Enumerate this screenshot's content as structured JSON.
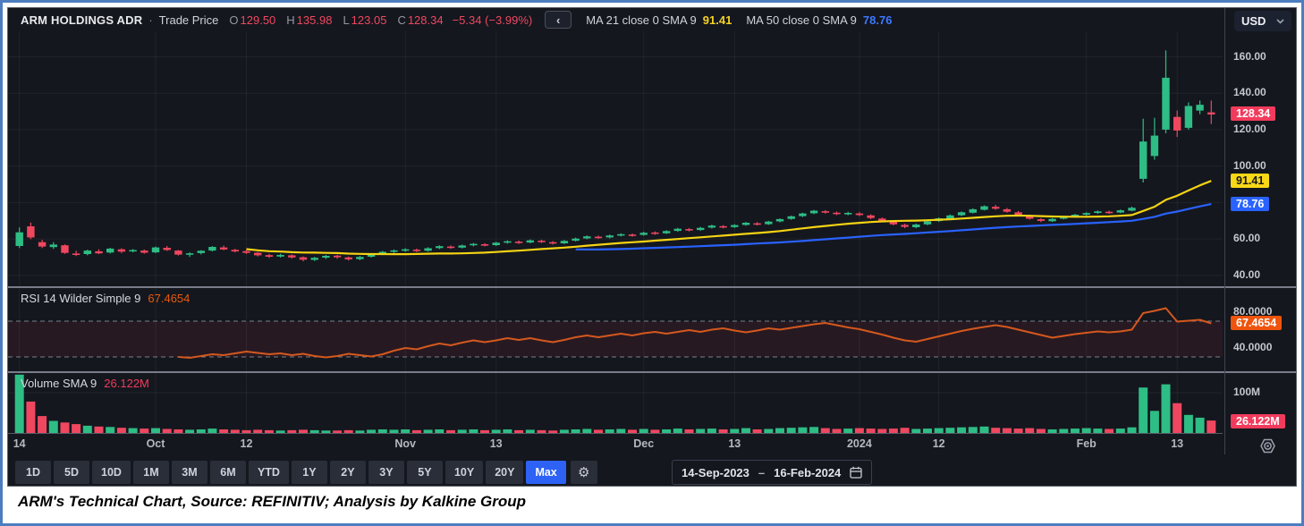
{
  "header": {
    "symbol": "ARM HOLDINGS ADR",
    "separator": "·",
    "series_type": "Trade Price",
    "ohlc": {
      "o_label": "O",
      "o": "129.50",
      "h_label": "H",
      "h": "135.98",
      "l_label": "L",
      "l": "123.05",
      "c_label": "C",
      "c": "128.34"
    },
    "change": "−5.34 (−3.99%)",
    "collapse_icon": "‹",
    "ma21": {
      "label": "MA 21 close 0 SMA 9",
      "value": "91.41"
    },
    "ma50": {
      "label": "MA 50 close 0 SMA 9",
      "value": "78.76"
    },
    "currency": "USD"
  },
  "panes": {
    "rsi": {
      "label": "RSI 14 Wilder Simple 9",
      "value": "67.4654"
    },
    "volume": {
      "label": "Volume SMA 9",
      "value": "26.122M"
    }
  },
  "axis": {
    "price_labels": [
      {
        "text": "160.00",
        "value": 160
      },
      {
        "text": "140.00",
        "value": 140
      },
      {
        "text": "120.00",
        "value": 120
      },
      {
        "text": "100.00",
        "value": 100
      },
      {
        "text": "60.00",
        "value": 60
      },
      {
        "text": "40.00",
        "value": 40
      }
    ],
    "price_badges": [
      {
        "text": "128.34",
        "value": 128.34,
        "bg": "#f23b5c",
        "fg": "#ffffff"
      },
      {
        "text": "91.41",
        "value": 91.41,
        "bg": "#f8d717",
        "fg": "#15171c"
      },
      {
        "text": "78.76",
        "value": 78.76,
        "bg": "#2962ff",
        "fg": "#ffffff"
      }
    ],
    "rsi_labels": [
      {
        "text": "80.0000",
        "value": 80
      },
      {
        "text": "40.0000",
        "value": 40
      }
    ],
    "rsi_badge": {
      "text": "67.4654",
      "value": 67.4654,
      "bg": "#ef540d",
      "fg": "#ffffff"
    },
    "vol_labels": [
      {
        "text": "100M",
        "value": 100
      }
    ],
    "vol_badge": {
      "text": "26.122M",
      "value": 26.122,
      "bg": "#f23b5c",
      "fg": "#ffffff"
    }
  },
  "time_axis": {
    "ticks": [
      {
        "label": "14",
        "bar": 0
      },
      {
        "label": "Oct",
        "bar": 12
      },
      {
        "label": "12",
        "bar": 20
      },
      {
        "label": "Nov",
        "bar": 34
      },
      {
        "label": "13",
        "bar": 42
      },
      {
        "label": "Dec",
        "bar": 55
      },
      {
        "label": "13",
        "bar": 63
      },
      {
        "label": "2024",
        "bar": 74
      },
      {
        "label": "12",
        "bar": 81
      },
      {
        "label": "Feb",
        "bar": 94
      },
      {
        "label": "13",
        "bar": 102
      }
    ]
  },
  "toolbar": {
    "ranges": [
      "1D",
      "5D",
      "10D",
      "1M",
      "3M",
      "6M",
      "YTD",
      "1Y",
      "2Y",
      "3Y",
      "5Y",
      "10Y",
      "20Y",
      "Max"
    ],
    "selected": "Max",
    "date_from": "14-Sep-2023",
    "date_sep": "–",
    "date_to": "16-Feb-2024"
  },
  "caption": "ARM's Technical Chart, Source: REFINITIV; Analysis by Kalkine Group",
  "chart_data": {
    "type": "candlestick",
    "title": "ARM HOLDINGS ADR - Trade Price",
    "date_range": [
      "14-Sep-2023",
      "16-Feb-2024"
    ],
    "price_ylim": [
      34,
      174
    ],
    "rsi_ylim": [
      14,
      107
    ],
    "vol_ylim_M": [
      0,
      149
    ],
    "grid_price": [
      40,
      60,
      80,
      100,
      120,
      140,
      160
    ],
    "colors": {
      "up": "#2ebd85",
      "down": "#ef4760",
      "ma21": "#f5d313",
      "ma50": "#2962ff",
      "rsi_line": "#d4581e",
      "rsi_band": "#b2283a",
      "grid": "rgba(255,255,255,0.055)",
      "dashed": "#9ba0aa"
    },
    "overlays": [
      {
        "name": "MA 21 close 0 SMA 9",
        "type": "sma",
        "period": 21,
        "last": 91.41
      },
      {
        "name": "MA 50 close 0 SMA 9",
        "type": "sma",
        "period": 50,
        "last": 78.76
      }
    ],
    "rsi": {
      "period": 14,
      "method": "Wilder",
      "upper": 70,
      "lower": 30,
      "last": 67.4654
    },
    "candles": [
      [
        56.1,
        66.3,
        55.0,
        63.6
      ],
      [
        66.9,
        69.0,
        59.9,
        60.8
      ],
      [
        58.2,
        59.5,
        55.0,
        55.8
      ],
      [
        55.5,
        58.2,
        54.5,
        56.9
      ],
      [
        56.5,
        57.0,
        51.8,
        52.3
      ],
      [
        52.0,
        53.5,
        50.6,
        51.3
      ],
      [
        51.7,
        54.1,
        51.0,
        53.6
      ],
      [
        53.2,
        54.3,
        51.7,
        52.1
      ],
      [
        52.5,
        55.1,
        52.0,
        54.7
      ],
      [
        54.3,
        54.9,
        52.2,
        53.0
      ],
      [
        53.3,
        54.4,
        52.6,
        53.9
      ],
      [
        53.6,
        54.2,
        51.9,
        52.4
      ],
      [
        52.6,
        55.8,
        52.2,
        55.3
      ],
      [
        55.1,
        56.1,
        53.4,
        53.9
      ],
      [
        53.6,
        53.9,
        50.9,
        51.4
      ],
      [
        51.3,
        52.6,
        50.1,
        52.1
      ],
      [
        52.2,
        53.8,
        51.5,
        53.5
      ],
      [
        53.6,
        56.0,
        53.1,
        55.6
      ],
      [
        55.3,
        56.3,
        53.8,
        54.2
      ],
      [
        54.0,
        54.6,
        52.6,
        53.1
      ],
      [
        53.3,
        53.9,
        51.8,
        52.3
      ],
      [
        52.4,
        52.9,
        50.4,
        51.0
      ],
      [
        51.1,
        51.8,
        49.5,
        50.2
      ],
      [
        50.3,
        51.9,
        49.8,
        51.2
      ],
      [
        51.0,
        51.5,
        49.2,
        49.8
      ],
      [
        49.9,
        50.4,
        47.7,
        48.6
      ],
      [
        48.5,
        50.1,
        47.9,
        49.6
      ],
      [
        49.7,
        51.2,
        49.0,
        50.7
      ],
      [
        50.8,
        51.3,
        49.1,
        49.9
      ],
      [
        49.8,
        50.3,
        48.1,
        48.8
      ],
      [
        48.9,
        50.6,
        48.3,
        50.1
      ],
      [
        50.2,
        52.1,
        49.7,
        51.6
      ],
      [
        51.7,
        53.4,
        51.1,
        52.9
      ],
      [
        53.0,
        54.2,
        52.2,
        53.7
      ],
      [
        53.8,
        54.9,
        52.9,
        54.3
      ],
      [
        54.1,
        54.7,
        52.8,
        53.4
      ],
      [
        53.5,
        55.4,
        53.0,
        54.9
      ],
      [
        55.0,
        56.5,
        54.4,
        56.0
      ],
      [
        55.8,
        56.4,
        54.5,
        55.1
      ],
      [
        55.2,
        56.9,
        54.8,
        56.4
      ],
      [
        56.5,
        57.8,
        55.9,
        57.3
      ],
      [
        57.1,
        57.7,
        55.9,
        56.5
      ],
      [
        56.6,
        58.4,
        56.1,
        57.9
      ],
      [
        58.0,
        59.2,
        57.4,
        58.7
      ],
      [
        58.5,
        59.1,
        57.3,
        57.9
      ],
      [
        58.0,
        59.7,
        57.6,
        59.2
      ],
      [
        59.0,
        59.6,
        57.8,
        58.4
      ],
      [
        58.2,
        58.8,
        56.9,
        57.5
      ],
      [
        57.6,
        59.4,
        57.2,
        58.9
      ],
      [
        59.0,
        60.7,
        58.6,
        60.2
      ],
      [
        60.3,
        61.9,
        59.8,
        61.4
      ],
      [
        61.2,
        61.8,
        60.0,
        60.7
      ],
      [
        60.8,
        62.4,
        60.3,
        61.9
      ],
      [
        62.0,
        63.1,
        61.3,
        62.6
      ],
      [
        62.4,
        63.0,
        61.2,
        62.0
      ],
      [
        62.2,
        63.9,
        61.8,
        63.4
      ],
      [
        63.5,
        64.1,
        62.3,
        63.0
      ],
      [
        63.1,
        64.8,
        62.7,
        64.3
      ],
      [
        64.4,
        66.1,
        63.9,
        65.6
      ],
      [
        65.4,
        66.0,
        64.1,
        64.8
      ],
      [
        64.9,
        66.6,
        64.4,
        66.1
      ],
      [
        66.2,
        67.8,
        65.7,
        67.3
      ],
      [
        67.0,
        67.6,
        65.8,
        66.4
      ],
      [
        66.5,
        68.1,
        66.0,
        67.6
      ],
      [
        67.7,
        69.3,
        67.2,
        68.9
      ],
      [
        68.6,
        69.2,
        67.4,
        68.0
      ],
      [
        68.1,
        69.9,
        67.7,
        69.5
      ],
      [
        69.6,
        71.3,
        69.1,
        70.9
      ],
      [
        71.0,
        72.8,
        70.5,
        72.4
      ],
      [
        72.5,
        74.4,
        72.0,
        74.0
      ],
      [
        74.1,
        75.9,
        73.6,
        75.5
      ],
      [
        75.2,
        75.8,
        73.9,
        74.6
      ],
      [
        74.4,
        75.0,
        73.1,
        73.7
      ],
      [
        73.8,
        74.9,
        73.0,
        74.3
      ],
      [
        74.0,
        74.6,
        72.5,
        73.1
      ],
      [
        72.9,
        73.5,
        70.9,
        71.5
      ],
      [
        71.2,
        71.8,
        69.3,
        69.9
      ],
      [
        69.6,
        70.2,
        67.4,
        68.0
      ],
      [
        67.7,
        68.3,
        65.9,
        66.6
      ],
      [
        66.4,
        68.4,
        65.9,
        67.9
      ],
      [
        68.0,
        70.1,
        67.5,
        69.6
      ],
      [
        69.8,
        71.8,
        69.3,
        71.3
      ],
      [
        71.0,
        73.4,
        70.6,
        72.9
      ],
      [
        73.0,
        75.1,
        72.5,
        74.6
      ],
      [
        74.4,
        76.8,
        74.0,
        76.3
      ],
      [
        76.0,
        78.4,
        75.6,
        77.9
      ],
      [
        77.6,
        78.7,
        76.0,
        76.6
      ],
      [
        76.3,
        77.0,
        74.4,
        74.9
      ],
      [
        74.6,
        75.3,
        72.5,
        73.0
      ],
      [
        72.7,
        73.3,
        70.6,
        71.1
      ],
      [
        70.8,
        71.4,
        69.2,
        69.9
      ],
      [
        69.7,
        71.5,
        69.3,
        71.0
      ],
      [
        71.1,
        72.6,
        70.7,
        72.1
      ],
      [
        72.2,
        73.8,
        71.8,
        73.3
      ],
      [
        73.3,
        74.6,
        72.7,
        74.2
      ],
      [
        74.3,
        75.6,
        73.7,
        75.1
      ],
      [
        74.9,
        75.5,
        73.8,
        74.4
      ],
      [
        74.5,
        76.2,
        74.1,
        75.7
      ],
      [
        75.5,
        77.7,
        75.2,
        77.1
      ],
      [
        93.0,
        126.0,
        91.0,
        113.5
      ],
      [
        105.5,
        126.5,
        103.5,
        116.7
      ],
      [
        120.0,
        163.5,
        118.0,
        148.5
      ],
      [
        127.0,
        130.5,
        116.0,
        119.5
      ],
      [
        121.0,
        135.0,
        120.0,
        133.0
      ],
      [
        130.5,
        136.0,
        128.5,
        133.68
      ],
      [
        129.5,
        135.98,
        123.05,
        128.34
      ]
    ],
    "volumes_M": [
      145,
      78,
      42,
      30,
      26,
      22,
      18,
      16,
      15,
      13,
      12,
      11,
      12,
      10,
      9,
      8,
      9,
      11,
      9,
      8,
      7,
      8,
      7,
      6,
      7,
      8,
      7,
      6,
      6,
      7,
      6,
      8,
      9,
      8,
      9,
      7,
      8,
      9,
      7,
      8,
      9,
      7,
      8,
      9,
      7,
      8,
      7,
      6,
      8,
      9,
      10,
      8,
      9,
      10,
      8,
      10,
      8,
      9,
      11,
      9,
      10,
      11,
      9,
      10,
      12,
      9,
      10,
      12,
      13,
      14,
      15,
      12,
      10,
      11,
      12,
      11,
      10,
      11,
      13,
      10,
      11,
      12,
      13,
      14,
      15,
      16,
      13,
      12,
      11,
      12,
      10,
      9,
      10,
      11,
      12,
      11,
      10,
      11,
      14,
      113,
      55,
      121,
      74,
      45,
      38,
      31
    ],
    "rsi_values": [
      null,
      null,
      null,
      null,
      null,
      null,
      null,
      null,
      null,
      null,
      null,
      null,
      null,
      null,
      30,
      29,
      31,
      33,
      32,
      34,
      36,
      34.5,
      33,
      34,
      32,
      33.5,
      31,
      29.5,
      31,
      33.5,
      32,
      30.5,
      33,
      37,
      40,
      38.5,
      42,
      45,
      43,
      46,
      48.5,
      46.5,
      48.5,
      51,
      49,
      51,
      48.5,
      46.5,
      49,
      52,
      54,
      52,
      54,
      56,
      54,
      56.5,
      58,
      56,
      58,
      60,
      58,
      60.5,
      62,
      59.5,
      57.5,
      59.5,
      62,
      60.5,
      62.5,
      64.5,
      66.5,
      68,
      65.5,
      63,
      61,
      58,
      55,
      51.5,
      48.5,
      47,
      50,
      53,
      56,
      59,
      61.5,
      63.5,
      65.5,
      63.5,
      60.5,
      57.5,
      54.5,
      51.5,
      53.5,
      55.5,
      57,
      58.5,
      57.5,
      58.5,
      60.5,
      79,
      81.5,
      84.5,
      69.5,
      70.5,
      71.5,
      67.4654
    ]
  }
}
